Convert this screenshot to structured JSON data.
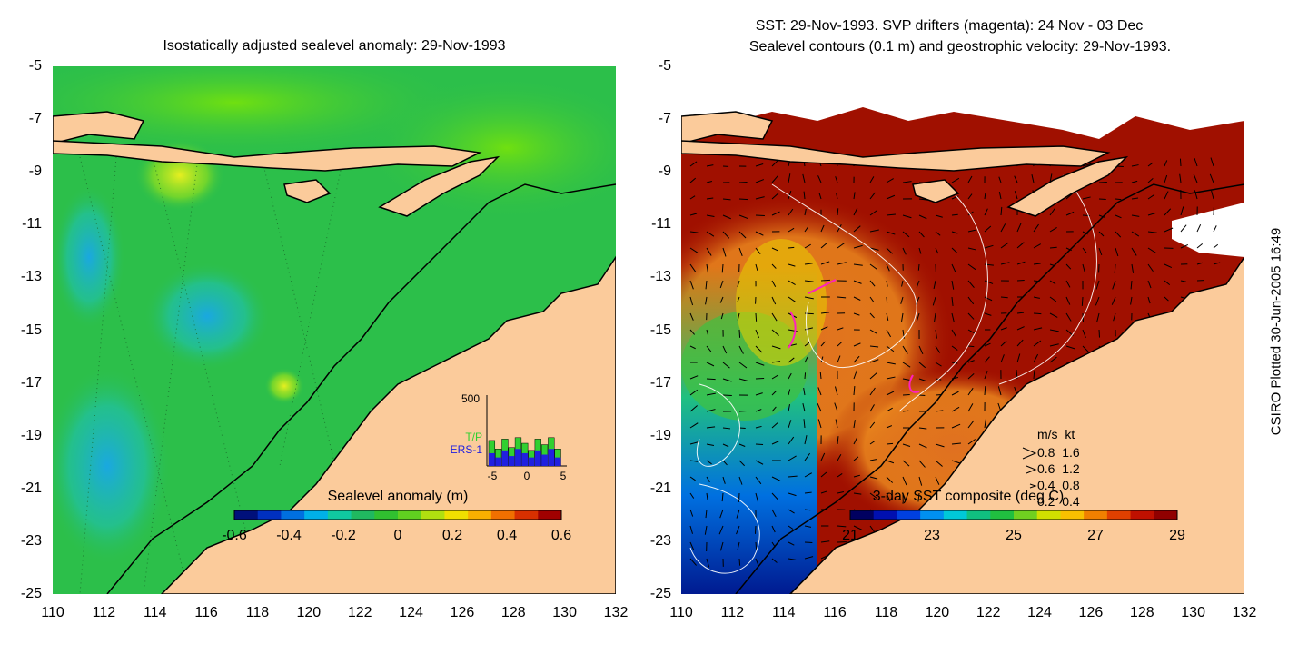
{
  "left_panel": {
    "title": "Isostatically adjusted sealevel anomaly: 29-Nov-1993",
    "colorbar": {
      "label": "Sealevel anomaly (m)",
      "ticks": [
        "-0.6",
        "-0.4",
        "-0.2",
        "0",
        "0.2",
        "0.4",
        "0.6"
      ],
      "colors": [
        "#00107a",
        "#0030c0",
        "#0070e0",
        "#00b0e8",
        "#10c8a0",
        "#20b860",
        "#30c030",
        "#60d020",
        "#b0e010",
        "#f0e000",
        "#f8b000",
        "#f07000",
        "#d83000",
        "#a00000"
      ]
    },
    "inset_histogram": {
      "ymax_label": "500",
      "x_ticks": [
        "-5",
        "0",
        "5"
      ],
      "legend_tp": "T/P",
      "legend_ers": "ERS-1",
      "tp_values": [
        180,
        120,
        190,
        130,
        200,
        160,
        110,
        190,
        150,
        200,
        120
      ],
      "ers_values": [
        90,
        60,
        110,
        70,
        120,
        90,
        60,
        110,
        80,
        120,
        60
      ],
      "tp_color": "#30d030",
      "ers_color": "#2020e0"
    }
  },
  "right_panel": {
    "title_line1": "SST: 29-Nov-1993. SVP drifters (magenta): 24 Nov - 03 Dec",
    "title_line2": "Sealevel contours (0.1 m) and geostrophic velocity: 29-Nov-1993.",
    "colorbar": {
      "label": "3-day SST composite (deg C)",
      "ticks": [
        "21",
        "23",
        "25",
        "27",
        "29"
      ],
      "colors": [
        "#000060",
        "#0010b0",
        "#0040e0",
        "#0090f0",
        "#00c8d8",
        "#10c080",
        "#20c040",
        "#70d020",
        "#d0e000",
        "#f8c000",
        "#f08000",
        "#e04000",
        "#c01000",
        "#900000"
      ]
    },
    "velocity_legend": {
      "header": "m/s  kt",
      "rows": [
        "0.8  1.6",
        "0.6  1.2",
        "0.4  0.8",
        "0.2  0.4"
      ]
    }
  },
  "axes": {
    "y_ticks": [
      "-5",
      "-7",
      "-9",
      "-11",
      "-13",
      "-15",
      "-17",
      "-19",
      "-21",
      "-23",
      "-25"
    ],
    "x_ticks": [
      "110",
      "112",
      "114",
      "116",
      "118",
      "120",
      "122",
      "124",
      "126",
      "128",
      "130",
      "132"
    ]
  },
  "side_label": "CSIRO Plotted 30-Jun-2005 16:49",
  "colors": {
    "land": "#fbcb9b",
    "ocean_left": "#2cbf4a",
    "ocean_right": "#a01000"
  }
}
